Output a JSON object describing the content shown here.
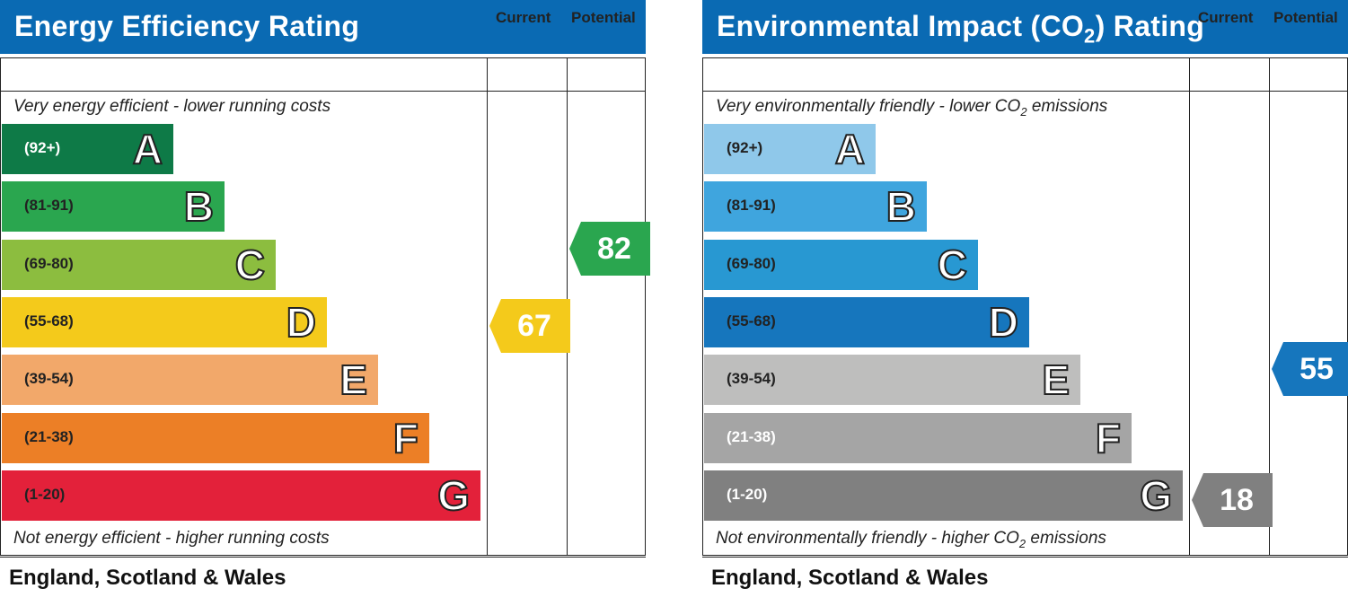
{
  "chart_data": [
    {
      "type": "bar",
      "title": "Energy Efficiency Rating",
      "top_note": "Very energy efficient - lower running costs",
      "bottom_note": "Not energy efficient - higher running costs",
      "column_headers": [
        "Current",
        "Potential"
      ],
      "categories": [
        "A",
        "B",
        "C",
        "D",
        "E",
        "F",
        "G"
      ],
      "ranges": [
        "(92+)",
        "(81-91)",
        "(69-80)",
        "(55-68)",
        "(39-54)",
        "(21-38)",
        "(1-20)"
      ],
      "colors": [
        "#0e7a47",
        "#2aa64f",
        "#8cbd3f",
        "#f4ca1b",
        "#f2a86a",
        "#ec7f26",
        "#e3213a"
      ],
      "current": {
        "value": 67,
        "color": "#f4ca1b"
      },
      "potential": {
        "value": 82,
        "color": "#2aa64f"
      },
      "footer": "England, Scotland & Wales"
    },
    {
      "type": "bar",
      "title_prefix": "Environmental Impact (CO",
      "title_sub": "2",
      "title_suffix": ") Rating",
      "top_note_prefix": "Very environmentally friendly - lower CO",
      "top_note_sub": "2",
      "top_note_suffix": " emissions",
      "bottom_note_prefix": "Not environmentally friendly - higher CO",
      "bottom_note_sub": "2",
      "bottom_note_suffix": " emissions",
      "column_headers": [
        "Current",
        "Potential"
      ],
      "categories": [
        "A",
        "B",
        "C",
        "D",
        "E",
        "F",
        "G"
      ],
      "ranges": [
        "(92+)",
        "(81-91)",
        "(69-80)",
        "(55-68)",
        "(39-54)",
        "(21-38)",
        "(1-20)"
      ],
      "colors": [
        "#8fc8ea",
        "#3fa5de",
        "#2898d2",
        "#1676bd",
        "#bebebd",
        "#a5a5a5",
        "#808080"
      ],
      "current": {
        "value": 18,
        "color": "#808080"
      },
      "potential": {
        "value": 55,
        "color": "#1676bd"
      },
      "footer": "England, Scotland & Wales"
    }
  ]
}
